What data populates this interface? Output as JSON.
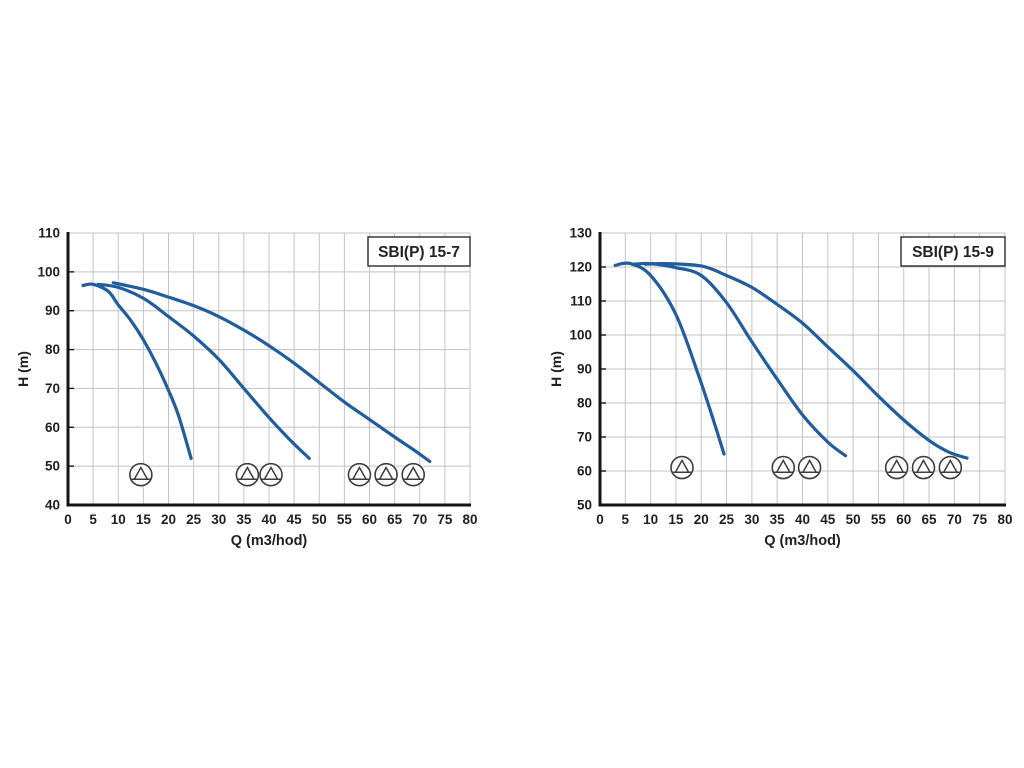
{
  "page": {
    "background": "#ffffff"
  },
  "icons": {
    "pump": "pump-circle-triangle-icon"
  },
  "chart_data": [
    {
      "type": "line",
      "title": "SBI(P) 15-7",
      "xlabel": "Q (m3/hod)",
      "ylabel": "H (m)",
      "xlim": [
        0,
        80
      ],
      "xtick_step": 5,
      "ylim": [
        40,
        110
      ],
      "ytick_step": 10,
      "grid": true,
      "legend": "none",
      "curve_color": "#215d9c",
      "grid_color": "#c3c3c3",
      "axis_color": "#141414",
      "text_color": "#1f1f1f",
      "icon_color": "#3d3d3d",
      "series": [
        {
          "name": "1-pump-curve",
          "points": [
            [
              3,
              96.5
            ],
            [
              5,
              96.8
            ],
            [
              8,
              95
            ],
            [
              10,
              91.5
            ],
            [
              12.5,
              87.5
            ],
            [
              15,
              82.5
            ],
            [
              17.5,
              76.5
            ],
            [
              20,
              69.5
            ],
            [
              22,
              63
            ],
            [
              24.5,
              52
            ]
          ]
        },
        {
          "name": "2-pumps-curve",
          "points": [
            [
              6,
              96.8
            ],
            [
              10,
              96
            ],
            [
              15,
              93.2
            ],
            [
              20,
              88.5
            ],
            [
              25,
              83.5
            ],
            [
              30,
              77.5
            ],
            [
              35,
              70
            ],
            [
              40,
              62.5
            ],
            [
              44,
              57
            ],
            [
              48,
              52
            ]
          ]
        },
        {
          "name": "3-pumps-curve",
          "points": [
            [
              9,
              97.2
            ],
            [
              15,
              95.5
            ],
            [
              20,
              93.5
            ],
            [
              25,
              91.3
            ],
            [
              30,
              88.5
            ],
            [
              35,
              85
            ],
            [
              40,
              81
            ],
            [
              45,
              76.5
            ],
            [
              50,
              71.5
            ],
            [
              55,
              66.5
            ],
            [
              60,
              62
            ],
            [
              65,
              57.5
            ],
            [
              69,
              54
            ],
            [
              72,
              51.2
            ]
          ]
        }
      ],
      "pump_icons": {
        "h": 47.8,
        "groups": [
          [
            14.5
          ],
          [
            35.7,
            40.4
          ],
          [
            58,
            63.3,
            68.7
          ]
        ]
      }
    },
    {
      "type": "line",
      "title": "SBI(P) 15-9",
      "xlabel": "Q (m3/hod)",
      "ylabel": "H (m)",
      "xlim": [
        0,
        80
      ],
      "xtick_step": 5,
      "ylim": [
        50,
        130
      ],
      "ytick_step": 10,
      "grid": true,
      "legend": "none",
      "curve_color": "#215d9c",
      "grid_color": "#c3c3c3",
      "axis_color": "#141414",
      "text_color": "#1f1f1f",
      "icon_color": "#3d3d3d",
      "series": [
        {
          "name": "1-pump-curve",
          "points": [
            [
              3,
              120.5
            ],
            [
              6,
              121
            ],
            [
              10,
              117.5
            ],
            [
              15,
              106
            ],
            [
              19.5,
              88
            ],
            [
              22.5,
              74.5
            ],
            [
              24.5,
              65
            ]
          ]
        },
        {
          "name": "2-pumps-curve",
          "points": [
            [
              6.5,
              120.8
            ],
            [
              10,
              121
            ],
            [
              15,
              119.8
            ],
            [
              20,
              117.5
            ],
            [
              25,
              109.5
            ],
            [
              30,
              98
            ],
            [
              35,
              87
            ],
            [
              40,
              76.5
            ],
            [
              45,
              68.5
            ],
            [
              48.5,
              64.5
            ]
          ]
        },
        {
          "name": "3-pumps-curve",
          "points": [
            [
              9,
              120.8
            ],
            [
              13,
              121
            ],
            [
              20,
              120.3
            ],
            [
              25,
              117.5
            ],
            [
              30,
              114
            ],
            [
              35,
              109
            ],
            [
              40,
              103.5
            ],
            [
              45,
              96.5
            ],
            [
              50,
              89.5
            ],
            [
              55,
              82
            ],
            [
              60,
              75
            ],
            [
              65,
              69
            ],
            [
              69,
              65.5
            ],
            [
              72.5,
              63.8
            ]
          ]
        }
      ],
      "pump_icons": {
        "h": 61,
        "groups": [
          [
            16.2
          ],
          [
            36.2,
            41.4
          ],
          [
            58.6,
            63.9,
            69.2
          ]
        ]
      }
    }
  ]
}
